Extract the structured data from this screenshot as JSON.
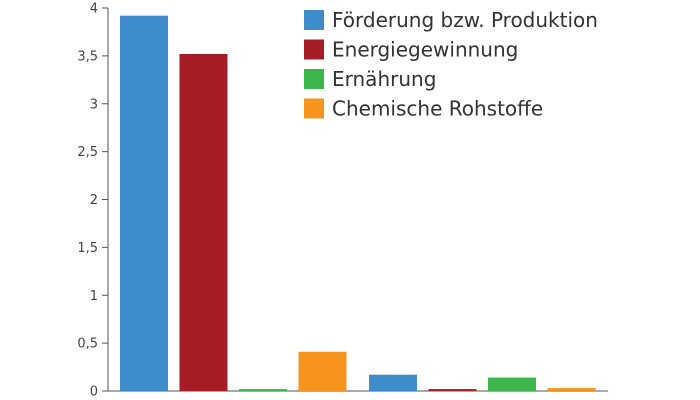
{
  "chart_data": {
    "type": "bar",
    "categories": [
      "",
      ""
    ],
    "series": [
      {
        "name": "Förderung bzw. Produktion",
        "color": "#3f8ccb",
        "values": [
          3.92,
          0.17
        ]
      },
      {
        "name": "Energiegewinnung",
        "color": "#a61c24",
        "values": [
          3.52,
          0.02
        ]
      },
      {
        "name": "Ernährung",
        "color": "#3cb54a",
        "values": [
          0.02,
          0.14
        ]
      },
      {
        "name": "Chemische Rohstoffe",
        "color": "#f7941d",
        "values": [
          0.41,
          0.03
        ]
      }
    ],
    "ylim": [
      0,
      4
    ],
    "yticks": [
      0,
      0.5,
      1,
      1.5,
      2,
      2.5,
      3,
      3.5,
      4
    ],
    "ytick_labels": [
      "0",
      "0,5",
      "1",
      "1,5",
      "2",
      "2,5",
      "3",
      "3,5",
      "4"
    ],
    "legend_position": "top-right",
    "grid": false,
    "axis_color": "#555555"
  }
}
